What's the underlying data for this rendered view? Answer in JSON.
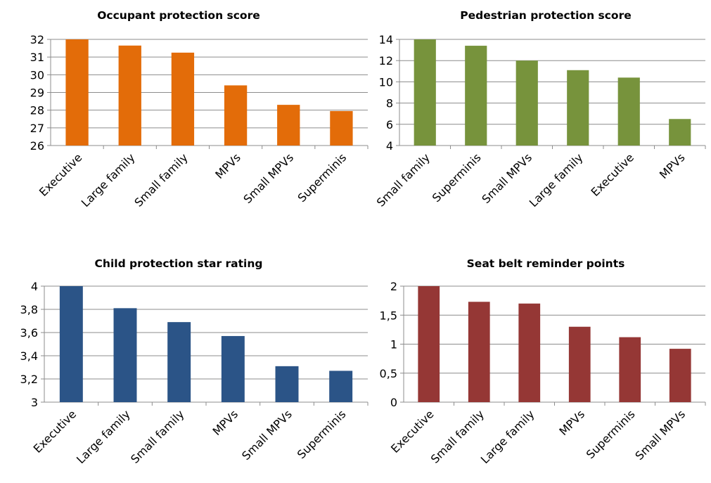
{
  "chart_data": [
    {
      "type": "bar",
      "title": "Occupant protection score",
      "categories": [
        "Executive",
        "Large family",
        "Small family",
        "MPVs",
        "Small MPVs",
        "Superminis"
      ],
      "values": [
        32.0,
        31.65,
        31.25,
        29.4,
        28.3,
        27.95
      ],
      "ylim": [
        26,
        32
      ],
      "yticks": [
        "26",
        "27",
        "28",
        "29",
        "30",
        "31",
        "32"
      ],
      "color": "#e36c09",
      "grid": true
    },
    {
      "type": "bar",
      "title": "Pedestrian protection score",
      "categories": [
        "Small family",
        "Superminis",
        "Small MPVs",
        "Large family",
        "Executive",
        "MPVs"
      ],
      "values": [
        14.0,
        13.4,
        12.0,
        11.1,
        10.4,
        6.5
      ],
      "ylim": [
        4,
        14
      ],
      "yticks": [
        "4",
        "6",
        "8",
        "10",
        "12",
        "14"
      ],
      "color": "#77933c",
      "grid": true
    },
    {
      "type": "bar",
      "title": "Child protection star rating",
      "categories": [
        "Executive",
        "Large family",
        "Small family",
        "MPVs",
        "Small MPVs",
        "Superminis"
      ],
      "values": [
        4.0,
        3.81,
        3.69,
        3.57,
        3.31,
        3.27
      ],
      "ylim": [
        3,
        4
      ],
      "yticks": [
        "3",
        "3,2",
        "3,4",
        "3,6",
        "3,8",
        "4"
      ],
      "color": "#2b5487",
      "grid": true
    },
    {
      "type": "bar",
      "title": "Seat belt reminder points",
      "categories": [
        "Executive",
        "Small family",
        "Large family",
        "MPVs",
        "Superminis",
        "Small MPVs"
      ],
      "values": [
        2.0,
        1.73,
        1.7,
        1.3,
        1.12,
        0.92
      ],
      "ylim": [
        0,
        2
      ],
      "yticks": [
        "0",
        "0,5",
        "1",
        "1,5",
        "2"
      ],
      "color": "#953735",
      "grid": true
    }
  ]
}
